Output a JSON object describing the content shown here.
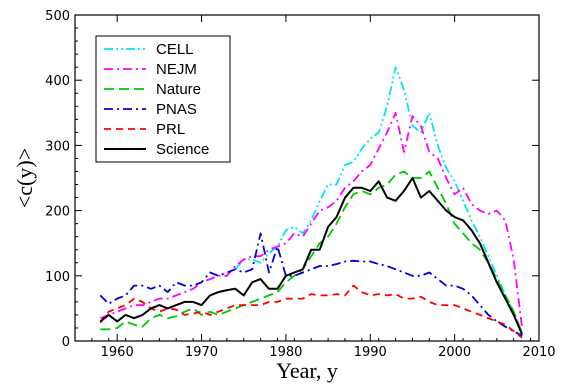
{
  "chart_data": {
    "type": "line",
    "title": "",
    "xlabel": "Year, y",
    "ylabel": "<c(y)>",
    "xlim": [
      1955,
      2010
    ],
    "ylim": [
      0,
      500
    ],
    "xticks": [
      1960,
      1970,
      1980,
      1990,
      2000,
      2010
    ],
    "yticks": [
      0,
      100,
      200,
      300,
      400,
      500
    ],
    "grid": false,
    "legend_position": "top-left",
    "series": [
      {
        "name": "CELL",
        "color": "#00e5ee",
        "dash": "dash-dot-dot",
        "x": [
          1974,
          1975,
          1976,
          1977,
          1978,
          1979,
          1980,
          1981,
          1982,
          1983,
          1984,
          1985,
          1986,
          1987,
          1988,
          1989,
          1990,
          1991,
          1992,
          1993,
          1994,
          1995,
          1996,
          1997,
          1998,
          1999,
          2000,
          2001,
          2002,
          2003,
          2004,
          2005,
          2006,
          2007,
          2008
        ],
        "y": [
          110,
          125,
          125,
          120,
          135,
          145,
          170,
          175,
          165,
          185,
          215,
          240,
          240,
          270,
          275,
          295,
          310,
          320,
          360,
          420,
          385,
          330,
          320,
          350,
          300,
          265,
          245,
          215,
          185,
          160,
          130,
          100,
          70,
          45,
          12
        ]
      },
      {
        "name": "NEJM",
        "color": "#ff00ff",
        "dash": "dash-dot",
        "x": [
          1958,
          1959,
          1960,
          1961,
          1962,
          1963,
          1964,
          1965,
          1966,
          1967,
          1968,
          1969,
          1970,
          1971,
          1972,
          1973,
          1974,
          1975,
          1976,
          1977,
          1978,
          1979,
          1980,
          1981,
          1982,
          1983,
          1984,
          1985,
          1986,
          1987,
          1988,
          1989,
          1990,
          1991,
          1992,
          1993,
          1994,
          1995,
          1996,
          1997,
          1998,
          1999,
          2000,
          2001,
          2002,
          2003,
          2004,
          2005,
          2006,
          2007,
          2008
        ],
        "y": [
          35,
          40,
          45,
          50,
          55,
          55,
          60,
          65,
          65,
          70,
          75,
          80,
          90,
          95,
          100,
          100,
          115,
          125,
          130,
          130,
          140,
          145,
          150,
          165,
          160,
          180,
          200,
          205,
          215,
          235,
          245,
          260,
          270,
          295,
          320,
          350,
          290,
          345,
          330,
          290,
          280,
          250,
          225,
          235,
          210,
          200,
          195,
          200,
          185,
          125,
          20
        ]
      },
      {
        "name": "Nature",
        "color": "#00c800",
        "dash": "dash",
        "x": [
          1958,
          1959,
          1960,
          1961,
          1962,
          1963,
          1964,
          1965,
          1966,
          1967,
          1968,
          1969,
          1970,
          1971,
          1972,
          1973,
          1974,
          1975,
          1976,
          1977,
          1978,
          1979,
          1980,
          1981,
          1982,
          1983,
          1984,
          1985,
          1986,
          1987,
          1988,
          1989,
          1990,
          1991,
          1992,
          1993,
          1994,
          1995,
          1996,
          1997,
          1998,
          1999,
          2000,
          2001,
          2002,
          2003,
          2004,
          2005,
          2006,
          2007,
          2008
        ],
        "y": [
          18,
          18,
          20,
          30,
          25,
          22,
          35,
          40,
          35,
          38,
          45,
          50,
          40,
          45,
          40,
          45,
          50,
          55,
          60,
          65,
          70,
          75,
          90,
          100,
          110,
          130,
          150,
          160,
          180,
          205,
          225,
          230,
          225,
          235,
          240,
          255,
          260,
          250,
          250,
          260,
          235,
          210,
          180,
          165,
          150,
          140,
          120,
          95,
          70,
          45,
          12
        ]
      },
      {
        "name": "PNAS",
        "color": "#0000dd",
        "dash": "dash-dot",
        "x": [
          1958,
          1959,
          1960,
          1961,
          1962,
          1963,
          1964,
          1965,
          1966,
          1967,
          1968,
          1969,
          1970,
          1971,
          1972,
          1973,
          1974,
          1975,
          1976,
          1977,
          1978,
          1979,
          1980,
          1981,
          1982,
          1983,
          1984,
          1985,
          1986,
          1987,
          1988,
          1989,
          1990,
          1991,
          1992,
          1993,
          1994,
          1995,
          1996,
          1997,
          1998,
          1999,
          2000,
          2001,
          2002,
          2003,
          2004,
          2005,
          2006,
          2007,
          2008
        ],
        "y": [
          70,
          57,
          65,
          70,
          85,
          85,
          80,
          85,
          75,
          90,
          85,
          85,
          90,
          105,
          100,
          105,
          110,
          105,
          110,
          165,
          105,
          145,
          100,
          100,
          105,
          110,
          115,
          115,
          118,
          122,
          123,
          122,
          122,
          118,
          115,
          110,
          105,
          100,
          100,
          105,
          95,
          85,
          85,
          80,
          70,
          55,
          40,
          30,
          22,
          15,
          8
        ]
      },
      {
        "name": "PRL",
        "color": "#ff0000",
        "dash": "long-dash",
        "x": [
          1958,
          1959,
          1960,
          1961,
          1962,
          1963,
          1964,
          1965,
          1966,
          1967,
          1968,
          1969,
          1970,
          1971,
          1972,
          1973,
          1974,
          1975,
          1976,
          1977,
          1978,
          1979,
          1980,
          1981,
          1982,
          1983,
          1984,
          1985,
          1986,
          1987,
          1988,
          1989,
          1990,
          1991,
          1992,
          1993,
          1994,
          1995,
          1996,
          1997,
          1998,
          1999,
          2000,
          2001,
          2002,
          2003,
          2004,
          2005,
          2006,
          2007,
          2008
        ],
        "y": [
          28,
          45,
          50,
          55,
          65,
          60,
          50,
          45,
          50,
          48,
          40,
          42,
          45,
          40,
          45,
          50,
          55,
          55,
          55,
          55,
          60,
          60,
          65,
          65,
          65,
          72,
          70,
          70,
          72,
          70,
          85,
          75,
          70,
          72,
          70,
          72,
          65,
          65,
          68,
          60,
          55,
          55,
          55,
          50,
          45,
          40,
          35,
          30,
          25,
          15,
          5
        ]
      },
      {
        "name": "Science",
        "color": "#000000",
        "dash": "solid",
        "x": [
          1958,
          1959,
          1960,
          1961,
          1962,
          1963,
          1964,
          1965,
          1966,
          1967,
          1968,
          1969,
          1970,
          1971,
          1972,
          1973,
          1974,
          1975,
          1976,
          1977,
          1978,
          1979,
          1980,
          1981,
          1982,
          1983,
          1984,
          1985,
          1986,
          1987,
          1988,
          1989,
          1990,
          1991,
          1992,
          1993,
          1994,
          1995,
          1996,
          1997,
          1998,
          1999,
          2000,
          2001,
          2002,
          2003,
          2004,
          2005,
          2006,
          2007,
          2008
        ],
        "y": [
          30,
          40,
          30,
          40,
          35,
          40,
          50,
          55,
          50,
          55,
          60,
          60,
          55,
          70,
          75,
          78,
          80,
          70,
          90,
          95,
          80,
          80,
          100,
          105,
          110,
          140,
          140,
          175,
          190,
          220,
          235,
          235,
          230,
          245,
          220,
          215,
          230,
          250,
          220,
          230,
          215,
          200,
          190,
          185,
          170,
          150,
          120,
          90,
          65,
          40,
          10
        ]
      }
    ]
  }
}
